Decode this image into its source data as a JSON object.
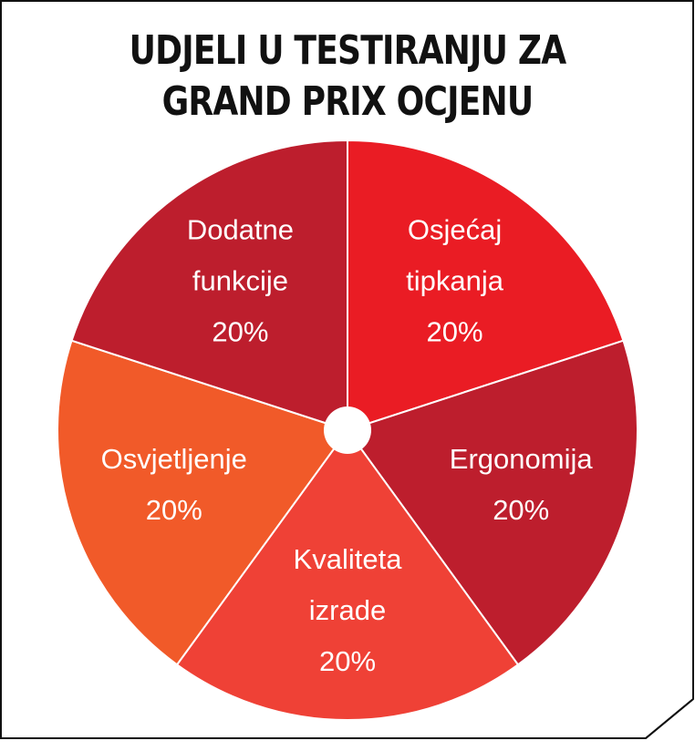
{
  "chart_data": {
    "type": "pie",
    "title_lines": [
      "UDJELI U TESTIRANJU ZA",
      "GRAND PRIX OCJENU"
    ],
    "slices": [
      {
        "label_lines": [
          "Osjećaj",
          "tipkanja"
        ],
        "value": 20,
        "value_label": "20%",
        "color": "#ea1c24"
      },
      {
        "label_lines": [
          "Ergonomija"
        ],
        "value": 20,
        "value_label": "20%",
        "color": "#bd1e2d"
      },
      {
        "label_lines": [
          "Kvaliteta",
          "izrade"
        ],
        "value": 20,
        "value_label": "20%",
        "color": "#ef4136"
      },
      {
        "label_lines": [
          "Osvjetljenje"
        ],
        "value": 20,
        "value_label": "20%",
        "color": "#f15a29"
      },
      {
        "label_lines": [
          "Dodatne",
          "funkcije"
        ],
        "value": 20,
        "value_label": "20%",
        "color": "#bd1e2d"
      }
    ]
  }
}
